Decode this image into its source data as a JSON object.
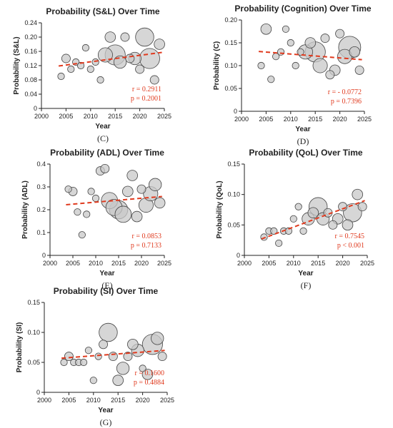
{
  "figure": {
    "panels_order": [
      "C",
      "D",
      "E",
      "F",
      "G"
    ]
  },
  "chart_data": [
    {
      "panel": "(C)",
      "type": "scatter",
      "title": "Probability (S&L) Over Time",
      "xlabel": "Year",
      "ylabel": "Probability (S&L)",
      "xlim": [
        2000,
        2025
      ],
      "ylim": [
        0,
        0.24
      ],
      "xticks": [
        2000,
        2005,
        2010,
        2015,
        2020,
        2025
      ],
      "yticks": [
        0,
        0.04,
        0.08,
        0.12,
        0.16,
        0.2,
        0.24
      ],
      "ytick_labels": [
        "0",
        "0.04",
        "0.08",
        "0.12",
        "0.16",
        "0.20",
        "0.24"
      ],
      "points": [
        {
          "x": 2004,
          "y": 0.09,
          "size": 2
        },
        {
          "x": 2005,
          "y": 0.14,
          "size": 3
        },
        {
          "x": 2006,
          "y": 0.11,
          "size": 2
        },
        {
          "x": 2007,
          "y": 0.13,
          "size": 2
        },
        {
          "x": 2008,
          "y": 0.12,
          "size": 2
        },
        {
          "x": 2009,
          "y": 0.17,
          "size": 2
        },
        {
          "x": 2010,
          "y": 0.11,
          "size": 2
        },
        {
          "x": 2011,
          "y": 0.13,
          "size": 2
        },
        {
          "x": 2012,
          "y": 0.08,
          "size": 2
        },
        {
          "x": 2013,
          "y": 0.15,
          "size": 6
        },
        {
          "x": 2014,
          "y": 0.2,
          "size": 4
        },
        {
          "x": 2015,
          "y": 0.15,
          "size": 9
        },
        {
          "x": 2016,
          "y": 0.13,
          "size": 5
        },
        {
          "x": 2017,
          "y": 0.2,
          "size": 3
        },
        {
          "x": 2018,
          "y": 0.14,
          "size": 3
        },
        {
          "x": 2019,
          "y": 0.14,
          "size": 5
        },
        {
          "x": 2020,
          "y": 0.11,
          "size": 3
        },
        {
          "x": 2021,
          "y": 0.2,
          "size": 8
        },
        {
          "x": 2022,
          "y": 0.14,
          "size": 9
        },
        {
          "x": 2023,
          "y": 0.08,
          "size": 3
        },
        {
          "x": 2024,
          "y": 0.18,
          "size": 4
        }
      ],
      "trend": {
        "x": [
          2003.5,
          2024.5
        ],
        "y": [
          0.119,
          0.157
        ]
      },
      "stats": {
        "r": "r = 0.2911",
        "p": "p = 0.2001"
      }
    },
    {
      "panel": "(D)",
      "type": "scatter",
      "title": "Probability (Cognition) Over Time",
      "xlabel": "Year",
      "ylabel": "Probability (C)",
      "xlim": [
        2000,
        2025
      ],
      "ylim": [
        0,
        0.2
      ],
      "xticks": [
        2000,
        2005,
        2010,
        2015,
        2020,
        2025
      ],
      "yticks": [
        0,
        0.05,
        0.1,
        0.15,
        0.2
      ],
      "ytick_labels": [
        "0",
        "0.05",
        "0.10",
        "0.15",
        "0.20"
      ],
      "points": [
        {
          "x": 2004,
          "y": 0.1,
          "size": 2
        },
        {
          "x": 2005,
          "y": 0.18,
          "size": 4
        },
        {
          "x": 2006,
          "y": 0.07,
          "size": 2
        },
        {
          "x": 2007,
          "y": 0.12,
          "size": 2
        },
        {
          "x": 2008,
          "y": 0.13,
          "size": 2
        },
        {
          "x": 2009,
          "y": 0.18,
          "size": 2
        },
        {
          "x": 2010,
          "y": 0.15,
          "size": 2
        },
        {
          "x": 2011,
          "y": 0.1,
          "size": 2
        },
        {
          "x": 2012,
          "y": 0.13,
          "size": 2
        },
        {
          "x": 2013,
          "y": 0.13,
          "size": 6
        },
        {
          "x": 2014,
          "y": 0.15,
          "size": 4
        },
        {
          "x": 2015,
          "y": 0.13,
          "size": 9
        },
        {
          "x": 2016,
          "y": 0.1,
          "size": 6
        },
        {
          "x": 2017,
          "y": 0.16,
          "size": 3
        },
        {
          "x": 2018,
          "y": 0.08,
          "size": 3
        },
        {
          "x": 2019,
          "y": 0.09,
          "size": 4
        },
        {
          "x": 2020,
          "y": 0.17,
          "size": 3
        },
        {
          "x": 2021,
          "y": 0.12,
          "size": 6
        },
        {
          "x": 2022,
          "y": 0.14,
          "size": 10
        },
        {
          "x": 2023,
          "y": 0.13,
          "size": 4
        },
        {
          "x": 2024,
          "y": 0.09,
          "size": 3
        }
      ],
      "trend": {
        "x": [
          2003.5,
          2024.5
        ],
        "y": [
          0.131,
          0.113
        ]
      },
      "stats": {
        "r": "r = - 0.0772",
        "p": "p = 0.7396"
      }
    },
    {
      "panel": "(E)",
      "type": "scatter",
      "title": "Probability (ADL) Over Time",
      "xlabel": "Year",
      "ylabel": "Probability (ADL)",
      "xlim": [
        2000,
        2025
      ],
      "ylim": [
        0,
        0.4
      ],
      "xticks": [
        2000,
        2005,
        2010,
        2015,
        2020,
        2025
      ],
      "yticks": [
        0,
        0.1,
        0.2,
        0.3,
        0.4
      ],
      "ytick_labels": [
        "0",
        "0.1",
        "0.2",
        "0.3",
        "0.4"
      ],
      "points": [
        {
          "x": 2004,
          "y": 0.29,
          "size": 2
        },
        {
          "x": 2005,
          "y": 0.28,
          "size": 3
        },
        {
          "x": 2006,
          "y": 0.19,
          "size": 2
        },
        {
          "x": 2007,
          "y": 0.09,
          "size": 2
        },
        {
          "x": 2008,
          "y": 0.18,
          "size": 2
        },
        {
          "x": 2009,
          "y": 0.28,
          "size": 2
        },
        {
          "x": 2010,
          "y": 0.25,
          "size": 2
        },
        {
          "x": 2011,
          "y": 0.37,
          "size": 3
        },
        {
          "x": 2012,
          "y": 0.38,
          "size": 3
        },
        {
          "x": 2013,
          "y": 0.24,
          "size": 7
        },
        {
          "x": 2014,
          "y": 0.21,
          "size": 7
        },
        {
          "x": 2015,
          "y": 0.2,
          "size": 8
        },
        {
          "x": 2016,
          "y": 0.18,
          "size": 7
        },
        {
          "x": 2017,
          "y": 0.28,
          "size": 4
        },
        {
          "x": 2018,
          "y": 0.35,
          "size": 4
        },
        {
          "x": 2019,
          "y": 0.17,
          "size": 4
        },
        {
          "x": 2020,
          "y": 0.29,
          "size": 3
        },
        {
          "x": 2021,
          "y": 0.22,
          "size": 6
        },
        {
          "x": 2022,
          "y": 0.27,
          "size": 6
        },
        {
          "x": 2023,
          "y": 0.31,
          "size": 5
        },
        {
          "x": 2024,
          "y": 0.23,
          "size": 4
        }
      ],
      "trend": {
        "x": [
          2003.5,
          2024.5
        ],
        "y": [
          0.222,
          0.258
        ]
      },
      "stats": {
        "r": "r = 0.0853",
        "p": "p = 0.7133"
      }
    },
    {
      "panel": "(F)",
      "type": "scatter",
      "title": "Probability (QoL) Over Time",
      "xlabel": "Year",
      "ylabel": "Probability (QoL)",
      "xlim": [
        2000,
        2025
      ],
      "ylim": [
        0,
        0.15
      ],
      "xticks": [
        2000,
        2005,
        2010,
        2015,
        2020,
        2025
      ],
      "yticks": [
        0,
        0.05,
        0.1,
        0.15
      ],
      "ytick_labels": [
        "0",
        "0.05",
        "0.10",
        "0.15"
      ],
      "points": [
        {
          "x": 2004,
          "y": 0.03,
          "size": 2
        },
        {
          "x": 2005,
          "y": 0.04,
          "size": 2
        },
        {
          "x": 2006,
          "y": 0.04,
          "size": 2
        },
        {
          "x": 2007,
          "y": 0.02,
          "size": 2
        },
        {
          "x": 2008,
          "y": 0.04,
          "size": 2
        },
        {
          "x": 2009,
          "y": 0.04,
          "size": 2
        },
        {
          "x": 2010,
          "y": 0.06,
          "size": 2
        },
        {
          "x": 2011,
          "y": 0.08,
          "size": 2
        },
        {
          "x": 2012,
          "y": 0.04,
          "size": 2
        },
        {
          "x": 2013,
          "y": 0.06,
          "size": 5
        },
        {
          "x": 2014,
          "y": 0.07,
          "size": 4
        },
        {
          "x": 2015,
          "y": 0.08,
          "size": 8
        },
        {
          "x": 2016,
          "y": 0.06,
          "size": 5
        },
        {
          "x": 2017,
          "y": 0.07,
          "size": 3
        },
        {
          "x": 2018,
          "y": 0.05,
          "size": 3
        },
        {
          "x": 2019,
          "y": 0.06,
          "size": 4
        },
        {
          "x": 2020,
          "y": 0.08,
          "size": 3
        },
        {
          "x": 2021,
          "y": 0.05,
          "size": 4
        },
        {
          "x": 2022,
          "y": 0.07,
          "size": 8
        },
        {
          "x": 2023,
          "y": 0.1,
          "size": 4
        },
        {
          "x": 2024,
          "y": 0.08,
          "size": 3
        }
      ],
      "trend": {
        "x": [
          2003.5,
          2024.5
        ],
        "y": [
          0.027,
          0.09
        ]
      },
      "stats": {
        "r": "r = 0.7545",
        "p": "p < 0.001"
      }
    },
    {
      "panel": "(G)",
      "type": "scatter",
      "title": "Probability (SI) Over Time",
      "xlabel": "Year",
      "ylabel": "Probability (SI)",
      "xlim": [
        2000,
        2025
      ],
      "ylim": [
        0,
        0.15
      ],
      "xticks": [
        2000,
        2005,
        2010,
        2015,
        2020,
        2025
      ],
      "yticks": [
        0,
        0.05,
        0.1,
        0.15
      ],
      "ytick_labels": [
        "0",
        "0.05",
        "0.10",
        "0.15"
      ],
      "points": [
        {
          "x": 2004,
          "y": 0.05,
          "size": 2
        },
        {
          "x": 2005,
          "y": 0.06,
          "size": 3
        },
        {
          "x": 2006,
          "y": 0.05,
          "size": 2
        },
        {
          "x": 2007,
          "y": 0.05,
          "size": 2
        },
        {
          "x": 2008,
          "y": 0.05,
          "size": 2
        },
        {
          "x": 2009,
          "y": 0.07,
          "size": 2
        },
        {
          "x": 2010,
          "y": 0.02,
          "size": 2
        },
        {
          "x": 2011,
          "y": 0.06,
          "size": 2
        },
        {
          "x": 2012,
          "y": 0.08,
          "size": 3
        },
        {
          "x": 2013,
          "y": 0.1,
          "size": 8
        },
        {
          "x": 2014,
          "y": 0.06,
          "size": 3
        },
        {
          "x": 2015,
          "y": 0.02,
          "size": 4
        },
        {
          "x": 2016,
          "y": 0.04,
          "size": 5
        },
        {
          "x": 2017,
          "y": 0.06,
          "size": 3
        },
        {
          "x": 2018,
          "y": 0.08,
          "size": 4
        },
        {
          "x": 2019,
          "y": 0.07,
          "size": 5
        },
        {
          "x": 2020,
          "y": 0.04,
          "size": 2
        },
        {
          "x": 2021,
          "y": 0.03,
          "size": 4
        },
        {
          "x": 2022,
          "y": 0.08,
          "size": 9
        },
        {
          "x": 2023,
          "y": 0.09,
          "size": 5
        },
        {
          "x": 2024,
          "y": 0.06,
          "size": 3
        }
      ],
      "trend": {
        "x": [
          2003.5,
          2024.5
        ],
        "y": [
          0.057,
          0.07
        ]
      },
      "stats": {
        "r": "r = 0.1600",
        "p": "p = 0.4884"
      }
    }
  ]
}
